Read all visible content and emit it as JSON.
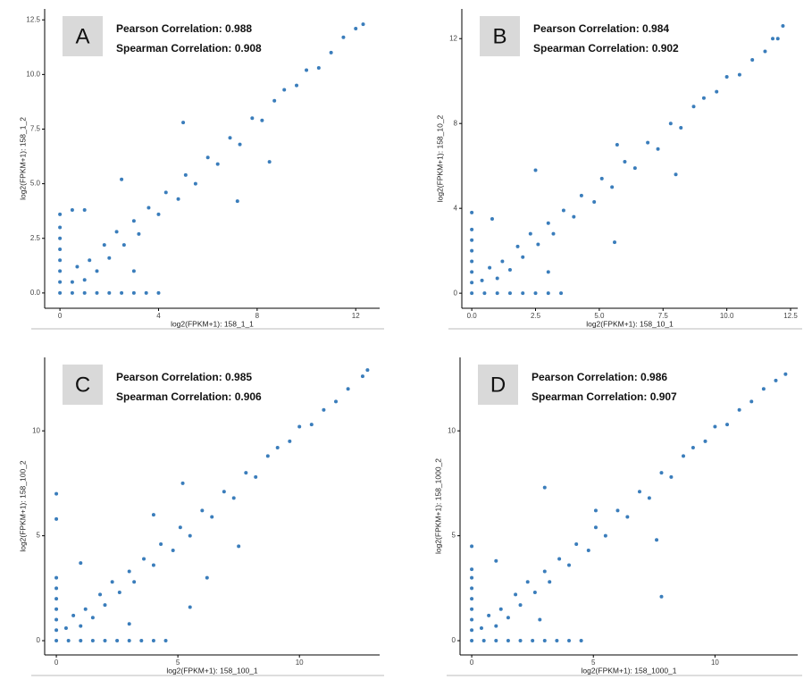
{
  "chart_data": [
    {
      "type": "scatter",
      "label": "A",
      "annotations": [
        "Pearson Correlation: 0.988",
        "Spearman Correlation: 0.908"
      ],
      "xlabel": "log2(FPKM+1): 158_1_1",
      "ylabel": "log2(FPKM+1): 158_1_2",
      "color": "#3a7dbb",
      "xlim": [
        -0.62,
        12.97
      ],
      "ylim": [
        -0.7,
        13
      ],
      "xticks": [
        0,
        4,
        8,
        12
      ],
      "yticks": [
        {
          "value": 0,
          "label": "0.0"
        },
        2.5,
        {
          "value": 5,
          "label": "5.0"
        },
        7.5,
        {
          "value": 10,
          "label": "10.0"
        },
        12.5
      ],
      "x": [
        0,
        0,
        0,
        0,
        0,
        0,
        0,
        0,
        0.5,
        1,
        1.5,
        2,
        2.5,
        3,
        3.5,
        4,
        0.5,
        0.7,
        1,
        1.2,
        1.5,
        1.8,
        2,
        2.3,
        2.6,
        3,
        3.2,
        3.6,
        4,
        4.3,
        4.8,
        5.1,
        5.5,
        6,
        6.4,
        6.9,
        7.3,
        7.8,
        8.2,
        8.7,
        9.1,
        9.6,
        10,
        10.5,
        11,
        11.5,
        12,
        12.3,
        0.5,
        1,
        2.5,
        5,
        8.5,
        7.2,
        3
      ],
      "values": [
        0,
        0.5,
        1,
        1.5,
        2,
        2.5,
        3,
        3.6,
        0,
        0,
        0,
        0,
        0,
        0,
        0,
        0,
        0.5,
        1.2,
        0.6,
        1.5,
        1,
        2.2,
        1.6,
        2.8,
        2.2,
        3.3,
        2.7,
        3.9,
        3.6,
        4.6,
        4.3,
        5.4,
        5,
        6.2,
        5.9,
        7.1,
        6.8,
        8,
        7.9,
        8.8,
        9.3,
        9.5,
        10.2,
        10.3,
        11,
        11.7,
        12.1,
        12.3,
        3.8,
        3.8,
        5.2,
        7.8,
        6,
        4.2,
        1
      ]
    },
    {
      "type": "scatter",
      "label": "B",
      "annotations": [
        "Pearson Correlation: 0.984",
        "Spearman Correlation: 0.902"
      ],
      "xlabel": "log2(FPKM+1): 158_10_1",
      "ylabel": "log2(FPKM+1): 158_10_2",
      "color": "#3a7dbb",
      "xlim": [
        -0.39,
        12.78
      ],
      "ylim": [
        -0.71,
        13.4
      ],
      "xticks": [
        {
          "value": 0,
          "label": "0.0"
        },
        2.5,
        {
          "value": 5,
          "label": "5.0"
        },
        7.5,
        {
          "value": 10,
          "label": "10.0"
        },
        12.5
      ],
      "yticks": [
        0,
        4,
        8,
        12
      ],
      "x": [
        0,
        0,
        0,
        0,
        0,
        0,
        0,
        0,
        0.5,
        1,
        1.5,
        2,
        2.5,
        3,
        3.5,
        0.4,
        0.7,
        1,
        1.2,
        1.5,
        1.8,
        2,
        2.3,
        2.6,
        3,
        3.2,
        3.6,
        4,
        4.3,
        4.8,
        5.1,
        5.5,
        6,
        6.4,
        6.9,
        7.3,
        7.8,
        8.2,
        8.7,
        9.1,
        9.6,
        10,
        10.5,
        11,
        11.5,
        12,
        12.2,
        0.8,
        2.5,
        5.7,
        8,
        5.6,
        3,
        11.8
      ],
      "values": [
        0,
        0.5,
        1,
        1.5,
        2,
        2.5,
        3,
        3.8,
        0,
        0,
        0,
        0,
        0,
        0,
        0,
        0.6,
        1.2,
        0.7,
        1.5,
        1.1,
        2.2,
        1.7,
        2.8,
        2.3,
        3.3,
        2.8,
        3.9,
        3.6,
        4.6,
        4.3,
        5.4,
        5,
        6.2,
        5.9,
        7.1,
        6.8,
        8,
        7.8,
        8.8,
        9.2,
        9.5,
        10.2,
        10.3,
        11,
        11.4,
        12,
        12.6,
        3.5,
        5.8,
        7,
        5.6,
        2.4,
        1,
        12
      ],
      "point_ref": null
    },
    {
      "type": "scatter",
      "label": "C",
      "annotations": [
        "Pearson Correlation: 0.985",
        "Spearman Correlation: 0.906"
      ],
      "xlabel": "log2(FPKM+1): 158_100_1",
      "ylabel": "log2(FPKM+1): 158_100_2",
      "color": "#3a7dbb",
      "xlim": [
        -0.48,
        13.3
      ],
      "ylim": [
        -0.68,
        13.5
      ],
      "xticks": [
        0,
        5,
        10
      ],
      "yticks": [
        0,
        5,
        10
      ],
      "x": [
        0,
        0,
        0,
        0,
        0,
        0,
        0,
        0,
        0,
        0.5,
        1,
        1.5,
        2,
        2.5,
        3,
        3.5,
        4,
        4.5,
        0.4,
        0.7,
        1,
        1.2,
        1.5,
        1.8,
        2,
        2.3,
        2.6,
        3,
        3.2,
        3.6,
        4,
        4.3,
        4.8,
        5.1,
        5.5,
        6,
        6.4,
        6.9,
        7.3,
        7.8,
        8.2,
        8.7,
        9.1,
        9.6,
        10,
        10.5,
        11,
        11.5,
        12,
        12.6,
        12.8,
        1,
        4,
        5.2,
        5.5,
        7.5,
        6.2,
        3
      ],
      "values": [
        0,
        0.5,
        1,
        1.5,
        2,
        2.5,
        3,
        5.8,
        7,
        0,
        0,
        0,
        0,
        0,
        0,
        0,
        0,
        0,
        0.6,
        1.2,
        0.7,
        1.5,
        1.1,
        2.2,
        1.7,
        2.8,
        2.3,
        3.3,
        2.8,
        3.9,
        3.6,
        4.6,
        4.3,
        5.4,
        5,
        6.2,
        5.9,
        7.1,
        6.8,
        8,
        7.8,
        8.8,
        9.2,
        9.5,
        10.2,
        10.3,
        11,
        11.4,
        12,
        12.6,
        12.9,
        3.7,
        6,
        7.5,
        1.6,
        4.5,
        3,
        0.8
      ]
    },
    {
      "type": "scatter",
      "label": "D",
      "annotations": [
        "Pearson Correlation: 0.986",
        "Spearman Correlation: 0.907"
      ],
      "xlabel": "log2(FPKM+1): 158_1000_1",
      "ylabel": "log2(FPKM+1): 158_1000_2",
      "color": "#3a7dbb",
      "xlim": [
        -0.48,
        13.4
      ],
      "ylim": [
        -0.68,
        13.5
      ],
      "xticks": [
        0,
        5,
        10
      ],
      "yticks": [
        0,
        5,
        10
      ],
      "x": [
        0,
        0,
        0,
        0,
        0,
        0,
        0,
        0,
        0.5,
        1,
        1.5,
        2,
        2.5,
        3,
        3.5,
        4,
        4.5,
        0.4,
        0.7,
        1,
        1.2,
        1.5,
        1.8,
        2,
        2.3,
        2.6,
        3,
        3.2,
        3.6,
        4,
        4.3,
        4.8,
        5.1,
        5.5,
        6,
        6.4,
        6.9,
        7.3,
        7.8,
        8.2,
        8.7,
        9.1,
        9.6,
        10,
        10.5,
        11,
        11.5,
        12,
        12.5,
        12.9,
        0,
        3,
        5.1,
        7.8,
        7.6,
        2.8,
        1
      ],
      "values": [
        0,
        0.5,
        1,
        1.5,
        2,
        2.5,
        3,
        3.4,
        0,
        0,
        0,
        0,
        0,
        0,
        0,
        0,
        0,
        0.6,
        1.2,
        0.7,
        1.5,
        1.1,
        2.2,
        1.7,
        2.8,
        2.3,
        3.3,
        2.8,
        3.9,
        3.6,
        4.6,
        4.3,
        5.4,
        5,
        6.2,
        5.9,
        7.1,
        6.8,
        8,
        7.8,
        8.8,
        9.2,
        9.5,
        10.2,
        10.3,
        11,
        11.4,
        12,
        12.4,
        12.7,
        4.5,
        7.3,
        6.2,
        2.1,
        4.8,
        1,
        3.8
      ]
    }
  ]
}
